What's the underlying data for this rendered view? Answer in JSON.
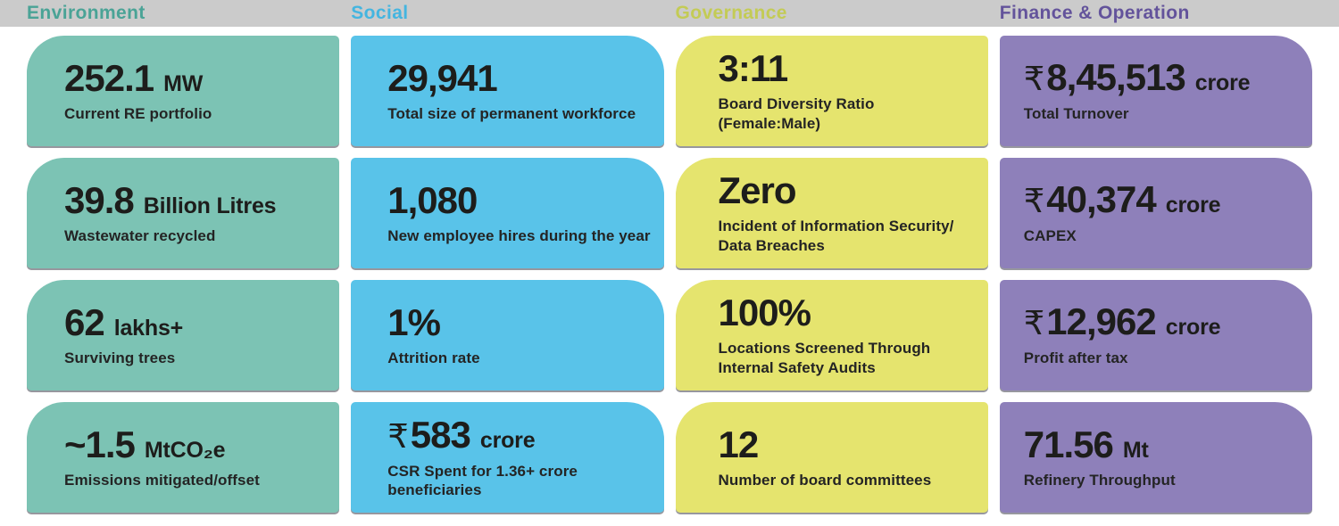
{
  "header": {
    "bar_color": "#cbcbcb",
    "columns": [
      {
        "label": "Environment",
        "color": "#4aa396"
      },
      {
        "label": "Social",
        "color": "#44b5e0"
      },
      {
        "label": "Governance",
        "color": "#c3cb55"
      },
      {
        "label": "Finance & Operation",
        "color": "#63539b"
      }
    ]
  },
  "columns": [
    {
      "name": "Environment",
      "card_color": "#7cc3b4",
      "rounded_corner": "top-left",
      "cards": [
        {
          "value": "252.1",
          "unit": "MW",
          "caption": "Current RE portfolio"
        },
        {
          "value": "39.8",
          "unit": "Billion Litres",
          "caption": "Wastewater recycled"
        },
        {
          "value": "62",
          "unit": "lakhs+",
          "caption": "Surviving trees"
        },
        {
          "value": "~1.5",
          "unit": "MtCO₂e",
          "caption": "Emissions mitigated/offset"
        }
      ]
    },
    {
      "name": "Social",
      "card_color": "#59c3e9",
      "rounded_corner": "top-right",
      "cards": [
        {
          "value": "29,941",
          "caption": "Total size of permanent workforce"
        },
        {
          "value": "1,080",
          "caption": "New employee hires during the year"
        },
        {
          "value": "1%",
          "caption": "Attrition rate"
        },
        {
          "prefix": "₹",
          "value": "583",
          "unit": "crore",
          "caption": "CSR Spent for 1.36+ crore\nbeneficiaries"
        }
      ]
    },
    {
      "name": "Governance",
      "card_color": "#e5e46e",
      "rounded_corner": "top-left",
      "cards": [
        {
          "value": "3:11",
          "caption": "Board Diversity Ratio (Female:Male)"
        },
        {
          "value": "Zero",
          "caption": "Incident of Information Security/\nData Breaches"
        },
        {
          "value": "100%",
          "caption": "Locations Screened Through\nInternal Safety Audits"
        },
        {
          "value": "12",
          "caption": "Number of board committees"
        }
      ]
    },
    {
      "name": "Finance & Operation",
      "card_color": "#8e80ba",
      "rounded_corner": "top-right",
      "cards": [
        {
          "prefix": "₹",
          "value": "8,45,513",
          "unit": "crore",
          "caption": "Total Turnover"
        },
        {
          "prefix": "₹",
          "value": "40,374",
          "unit": "crore",
          "caption": "CAPEX"
        },
        {
          "prefix": "₹",
          "value": "12,962",
          "unit": "crore",
          "caption": "Profit after tax"
        },
        {
          "value": "71.56",
          "unit": "Mt",
          "caption": "Refinery Throughput"
        }
      ]
    }
  ]
}
